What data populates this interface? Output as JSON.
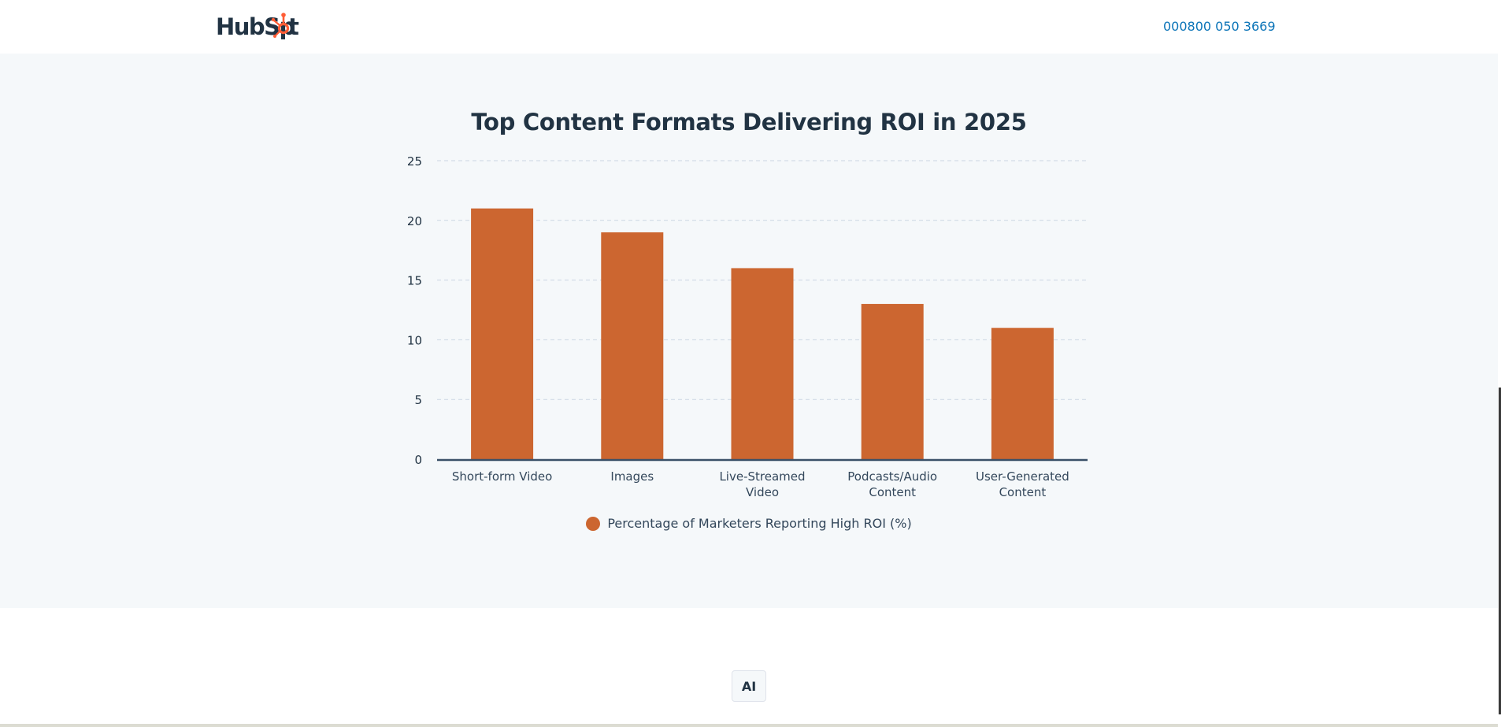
{
  "header": {
    "logo_text": "HubSpot",
    "phone": "000800 050 3669"
  },
  "colors": {
    "bar": "#cc6630",
    "text_dark": "#213343",
    "link": "#0b74b8",
    "grid": "#cbd6e2",
    "axis": "#3a5068",
    "section_bg": "#f5f8fa"
  },
  "chart_data": {
    "type": "bar",
    "title": "Top Content Formats Delivering ROI in 2025",
    "categories": [
      [
        "Short-form Video"
      ],
      [
        "Images"
      ],
      [
        "Live-Streamed",
        "Video"
      ],
      [
        "Podcasts/Audio",
        "Content"
      ],
      [
        "User-Generated",
        "Content"
      ]
    ],
    "series": [
      {
        "name": "Percentage of Marketers Reporting High ROI (%)",
        "values": [
          21,
          19,
          16,
          13,
          11
        ]
      }
    ],
    "ylim": [
      0,
      25
    ],
    "yticks": [
      0,
      5,
      10,
      15,
      20,
      25
    ],
    "grid": "dashed horizontal",
    "legend_position": "bottom-center"
  },
  "ai_button": {
    "label": "AI"
  }
}
